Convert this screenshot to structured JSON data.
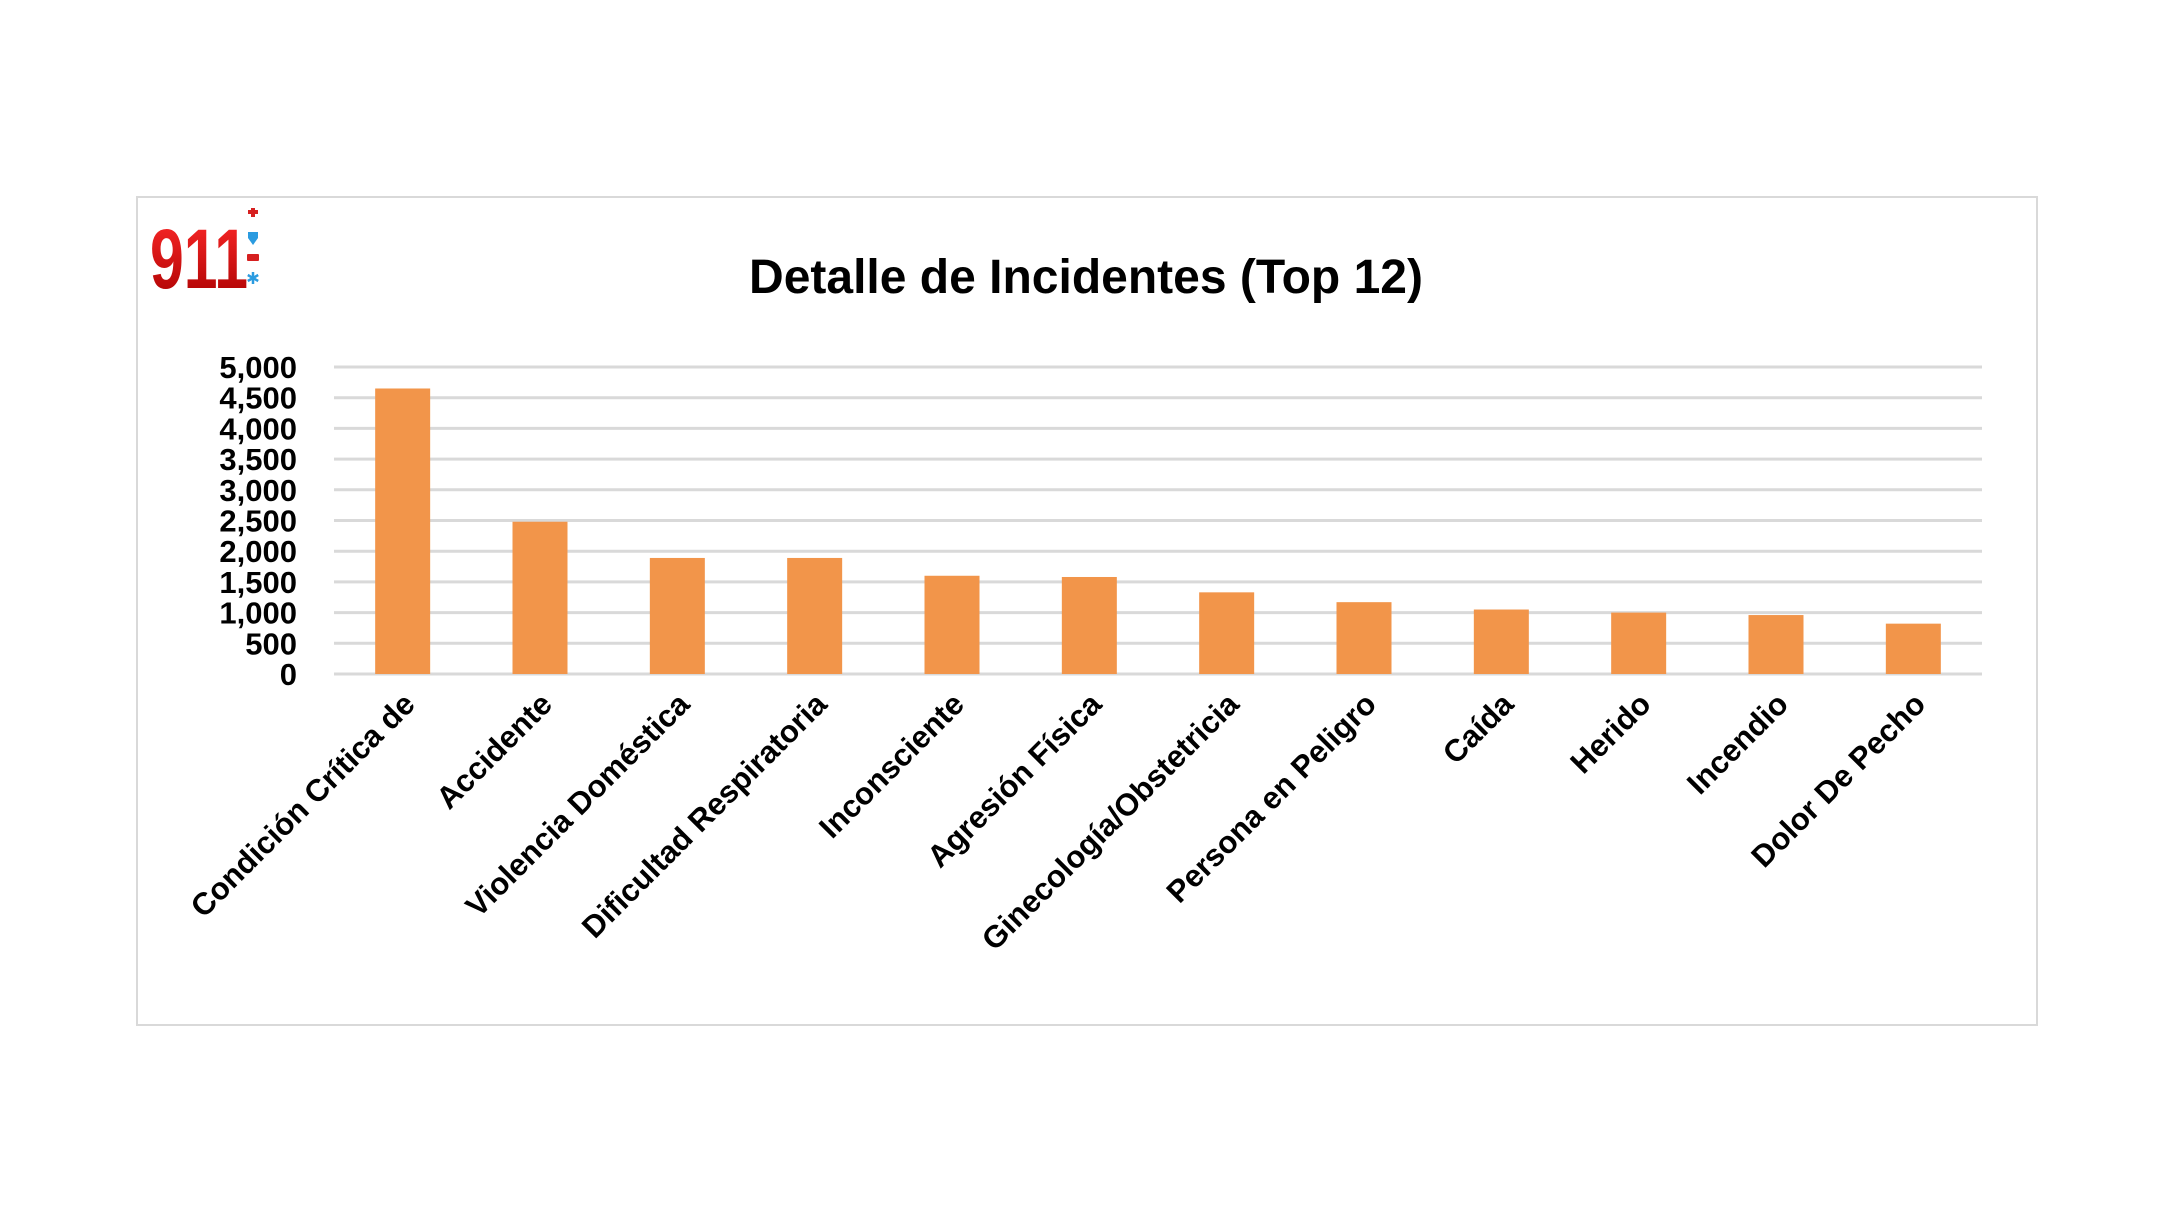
{
  "logo": {
    "text": "911",
    "icons": [
      "medical-cross-icon",
      "shield-icon",
      "ambulance-icon",
      "star-of-life-icon"
    ]
  },
  "chart_data": {
    "type": "bar",
    "title": "Detalle de Incidentes (Top 12)",
    "xlabel": "",
    "ylabel": "",
    "ylim": [
      0,
      5000
    ],
    "yticks": [
      0,
      500,
      1000,
      1500,
      2000,
      2500,
      3000,
      3500,
      4000,
      4500,
      5000
    ],
    "ytick_labels": [
      "0",
      "500",
      "1,000",
      "1,500",
      "2,000",
      "2,500",
      "3,000",
      "3,500",
      "4,000",
      "4,500",
      "5,000"
    ],
    "grid": true,
    "legend": "none",
    "bar_color": "#F2954A",
    "categories": [
      "Condición Crítica de",
      "Accidente",
      "Violencia Doméstica",
      "Dificultad Respiratoria",
      "Inconsciente",
      "Agresión Física",
      "Ginecología/Obstetricia",
      "Persona en Peligro",
      "Caída",
      "Herido",
      "Incendio",
      "Dolor De Pecho"
    ],
    "values": [
      4650,
      2480,
      1890,
      1890,
      1600,
      1580,
      1330,
      1170,
      1050,
      1000,
      960,
      820
    ]
  }
}
